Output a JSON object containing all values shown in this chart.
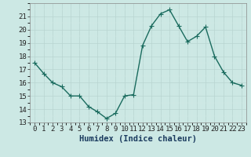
{
  "x": [
    0,
    1,
    2,
    3,
    4,
    5,
    6,
    7,
    8,
    9,
    10,
    11,
    12,
    13,
    14,
    15,
    16,
    17,
    18,
    19,
    20,
    21,
    22,
    23
  ],
  "y": [
    17.5,
    16.7,
    16.0,
    15.7,
    15.0,
    15.0,
    14.2,
    13.8,
    13.3,
    13.7,
    15.0,
    15.1,
    18.8,
    20.3,
    21.2,
    21.5,
    20.3,
    19.1,
    19.5,
    20.2,
    18.0,
    16.8,
    16.0,
    15.8
  ],
  "line_color": "#1a6b5e",
  "marker": "D",
  "marker_size": 2.0,
  "bg_color": "#cce8e4",
  "grid_color_major": "#b8d4d0",
  "grid_color_minor": "#d4eae8",
  "xlabel": "Humidex (Indice chaleur)",
  "xlim": [
    -0.5,
    23.5
  ],
  "ylim": [
    13,
    22
  ],
  "yticks": [
    13,
    14,
    15,
    16,
    17,
    18,
    19,
    20,
    21
  ],
  "xticks": [
    0,
    1,
    2,
    3,
    4,
    5,
    6,
    7,
    8,
    9,
    10,
    11,
    12,
    13,
    14,
    15,
    16,
    17,
    18,
    19,
    20,
    21,
    22,
    23
  ],
  "xlabel_fontsize": 7.5,
  "tick_fontsize": 6.5,
  "line_width": 1.0
}
